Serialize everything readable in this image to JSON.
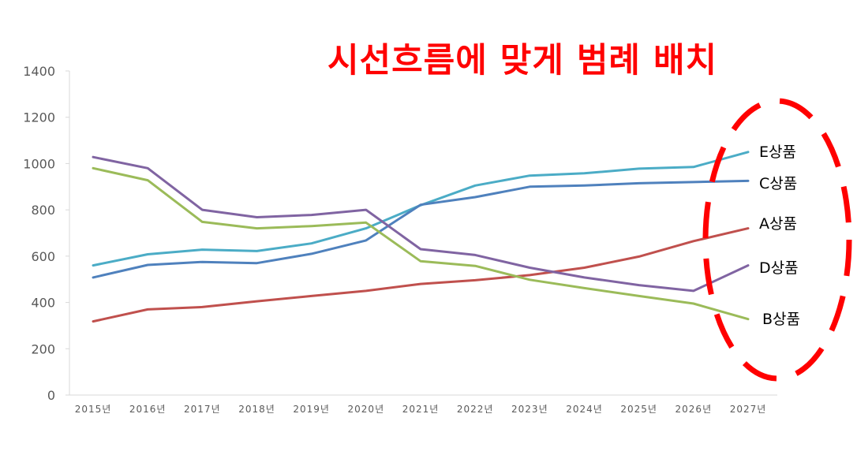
{
  "headline": "시선흐름에 맞게 범례 배치",
  "colors": {
    "A상품": "#c0504d",
    "B상품": "#9bbb59",
    "C상품": "#4f81bd",
    "D상품": "#8064a2",
    "E상품": "#4bacc6",
    "callout": "#ff0000",
    "axis": "#d9d9d9",
    "tick_text": "#595959"
  },
  "chart_data": {
    "type": "line",
    "categories": [
      "2015년",
      "2016년",
      "2017년",
      "2018년",
      "2019년",
      "2020년",
      "2021년",
      "2022년",
      "2023년",
      "2024년",
      "2025년",
      "2026년",
      "2027년"
    ],
    "ylim": [
      0,
      1400
    ],
    "yticks": [
      0,
      200,
      400,
      600,
      800,
      1000,
      1200,
      1400
    ],
    "grid": false,
    "legend": "right, labels placed at line ends",
    "series": [
      {
        "name": "E상품",
        "values": [
          560,
          608,
          628,
          622,
          655,
          720,
          820,
          905,
          948,
          958,
          978,
          985,
          1050
        ]
      },
      {
        "name": "C상품",
        "values": [
          508,
          562,
          575,
          570,
          610,
          668,
          822,
          855,
          900,
          905,
          915,
          920,
          925
        ]
      },
      {
        "name": "A상품",
        "values": [
          318,
          370,
          380,
          405,
          428,
          450,
          480,
          496,
          518,
          550,
          598,
          665,
          720
        ]
      },
      {
        "name": "D상품",
        "values": [
          1028,
          980,
          800,
          768,
          778,
          800,
          630,
          605,
          550,
          508,
          475,
          450,
          560
        ]
      },
      {
        "name": "B상품",
        "values": [
          980,
          928,
          748,
          720,
          730,
          745,
          578,
          558,
          498,
          462,
          428,
          395,
          328
        ]
      }
    ]
  }
}
